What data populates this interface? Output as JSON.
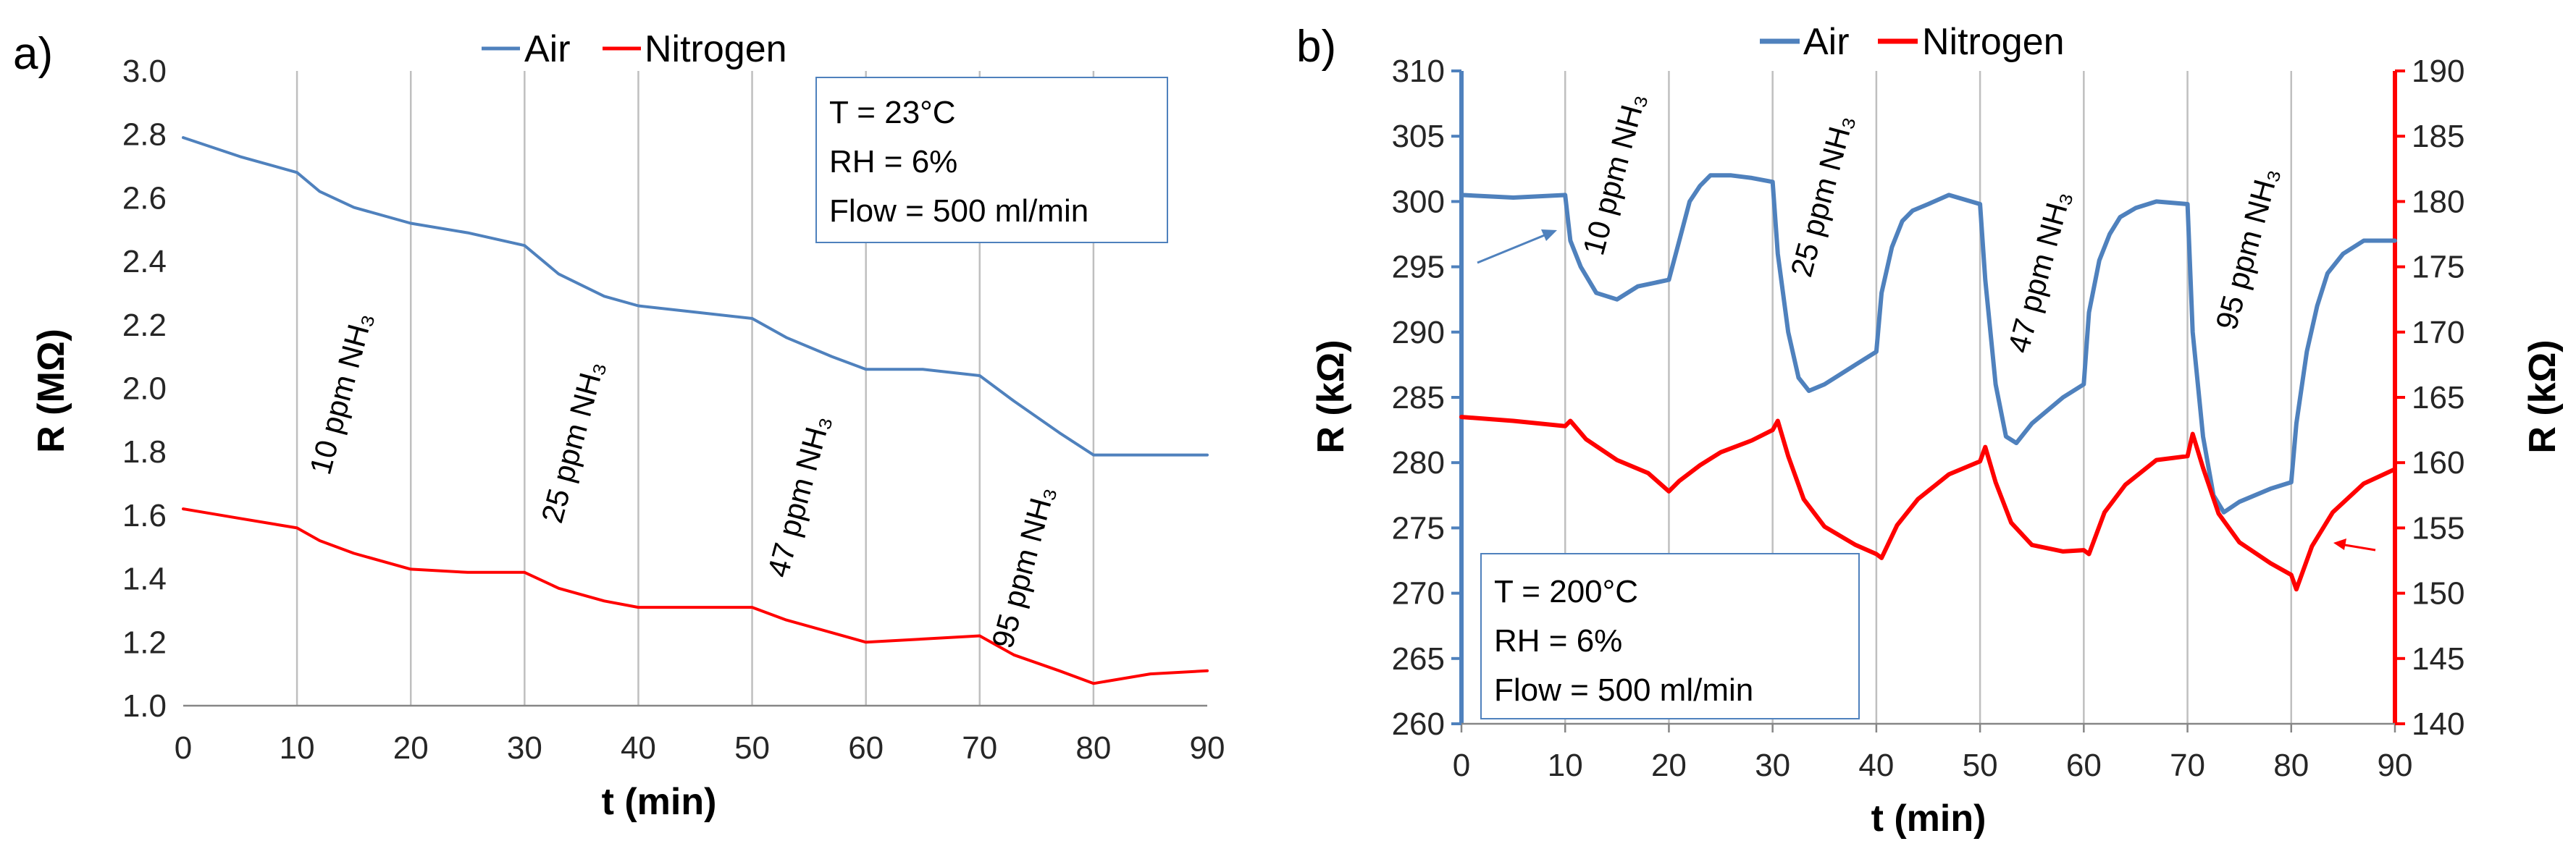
{
  "chart_data": [
    {
      "type": "line",
      "panel_label": "a)",
      "xlabel": "t (min)",
      "ylabel": "R (MΩ)",
      "xlim": [
        0,
        90
      ],
      "ylim": [
        1.0,
        3.0
      ],
      "x_ticks": [
        "0",
        "10",
        "20",
        "30",
        "40",
        "50",
        "60",
        "70",
        "80",
        "90"
      ],
      "y_ticks": [
        "1.0",
        "1.2",
        "1.4",
        "1.6",
        "1.8",
        "2.0",
        "2.2",
        "2.4",
        "2.6",
        "2.8",
        "3.0"
      ],
      "grid": "vertical",
      "legend": [
        "Air",
        "Nitrogen"
      ],
      "conditions": [
        "T = 23°C",
        "RH = 6%",
        "Flow = 500 ml/min"
      ],
      "annotations": [
        "10 ppm NH₃",
        "25 ppm NH₃",
        "47 ppm NH₃",
        "95 ppm NH₃"
      ],
      "series": [
        {
          "name": "Air",
          "color": "#4F81BD",
          "x": [
            0,
            5,
            10,
            12,
            15,
            20,
            25,
            30,
            33,
            37,
            40,
            45,
            50,
            53,
            57,
            60,
            65,
            70,
            73,
            77,
            80,
            85,
            90
          ],
          "y": [
            2.79,
            2.73,
            2.68,
            2.62,
            2.57,
            2.52,
            2.49,
            2.45,
            2.36,
            2.29,
            2.26,
            2.24,
            2.22,
            2.16,
            2.1,
            2.06,
            2.06,
            2.04,
            1.96,
            1.86,
            1.79,
            1.79,
            1.79
          ]
        },
        {
          "name": "Nitrogen",
          "color": "#FF0000",
          "x": [
            0,
            5,
            10,
            12,
            15,
            20,
            25,
            30,
            33,
            37,
            40,
            45,
            50,
            53,
            57,
            60,
            65,
            70,
            73,
            77,
            80,
            85,
            90
          ],
          "y": [
            1.62,
            1.59,
            1.56,
            1.52,
            1.48,
            1.43,
            1.42,
            1.42,
            1.37,
            1.33,
            1.31,
            1.31,
            1.31,
            1.27,
            1.23,
            1.2,
            1.21,
            1.22,
            1.16,
            1.11,
            1.07,
            1.1,
            1.11
          ]
        }
      ]
    },
    {
      "type": "line",
      "panel_label": "b)",
      "xlabel": "t (min)",
      "ylabel": "R (kΩ)",
      "y2label": "R (kΩ)",
      "xlim": [
        0,
        90
      ],
      "ylim": [
        260,
        310
      ],
      "y2lim": [
        140,
        190
      ],
      "x_ticks": [
        "0",
        "10",
        "20",
        "30",
        "40",
        "50",
        "60",
        "70",
        "80",
        "90"
      ],
      "y_ticks": [
        "260",
        "265",
        "270",
        "275",
        "280",
        "285",
        "290",
        "295",
        "300",
        "305",
        "310"
      ],
      "y2_ticks": [
        "140",
        "145",
        "150",
        "155",
        "160",
        "165",
        "170",
        "175",
        "180",
        "185",
        "190"
      ],
      "grid": "vertical",
      "legend": [
        "Air",
        "Nitrogen"
      ],
      "conditions": [
        "T = 200°C",
        "RH = 6%",
        "Flow = 500 ml/min"
      ],
      "annotations": [
        "10 ppm NH₃",
        "25 ppm NH₃",
        "47 ppm NH₃",
        "95 ppm NH₃"
      ],
      "series": [
        {
          "name": "Air",
          "axis": "left",
          "color": "#4F81BD",
          "x": [
            0,
            5,
            10,
            10.5,
            11.5,
            13,
            15,
            17,
            20,
            21,
            22,
            23,
            24,
            26,
            28,
            30,
            30.5,
            31.5,
            32.5,
            33.5,
            35,
            38,
            40,
            40.5,
            41.5,
            42.5,
            43.5,
            45,
            47,
            50,
            50.5,
            51.5,
            52.5,
            53.5,
            55,
            58,
            60,
            60.5,
            61.5,
            62.5,
            63.5,
            65,
            67,
            70,
            70.5,
            71.5,
            72.5,
            73.5,
            75,
            78,
            80,
            80.5,
            81.5,
            82.5,
            83.5,
            85,
            87,
            90
          ],
          "y": [
            300.5,
            300.3,
            300.5,
            297,
            295,
            293,
            292.5,
            293.5,
            294,
            297,
            300,
            301.2,
            302,
            302,
            301.8,
            301.5,
            296,
            290,
            286.5,
            285.5,
            286,
            287.5,
            288.5,
            293,
            296.5,
            298.5,
            299.3,
            299.8,
            300.5,
            299.8,
            294,
            286,
            282,
            281.5,
            283,
            285,
            286,
            291.5,
            295.5,
            297.5,
            298.8,
            299.5,
            300,
            299.8,
            290,
            282,
            277.5,
            276.2,
            277,
            278,
            278.5,
            283,
            288.5,
            292,
            294.5,
            296,
            297,
            297
          ]
        },
        {
          "name": "Nitrogen",
          "axis": "right",
          "color": "#FF0000",
          "x": [
            0,
            5,
            10,
            10.5,
            12,
            15,
            18,
            20,
            21,
            23,
            25,
            28,
            30,
            30.5,
            31.5,
            33,
            35,
            38,
            40,
            40.5,
            42,
            44,
            47,
            50,
            50.5,
            51.5,
            53,
            55,
            58,
            60,
            60.5,
            62,
            64,
            67,
            70,
            70.5,
            71.5,
            73,
            75,
            78,
            80,
            80.5,
            82,
            84,
            87,
            90
          ],
          "y": [
            163.5,
            163.2,
            162.8,
            163.2,
            161.8,
            160.2,
            159.2,
            157.8,
            158.6,
            159.8,
            160.8,
            161.7,
            162.5,
            163.2,
            160.5,
            157.2,
            155.1,
            153.7,
            153,
            152.7,
            155.2,
            157.2,
            159.1,
            160.1,
            161.2,
            158.5,
            155.4,
            153.7,
            153.2,
            153.3,
            153,
            156.2,
            158.3,
            160.2,
            160.5,
            162.2,
            159.6,
            156.1,
            153.9,
            152.3,
            151.4,
            150.3,
            153.6,
            156.2,
            158.4,
            159.5
          ]
        }
      ]
    }
  ],
  "colors": {
    "air": "#4F81BD",
    "nitrogen": "#FF0000",
    "grid": "#BFBFBF",
    "axis": "#868686"
  }
}
